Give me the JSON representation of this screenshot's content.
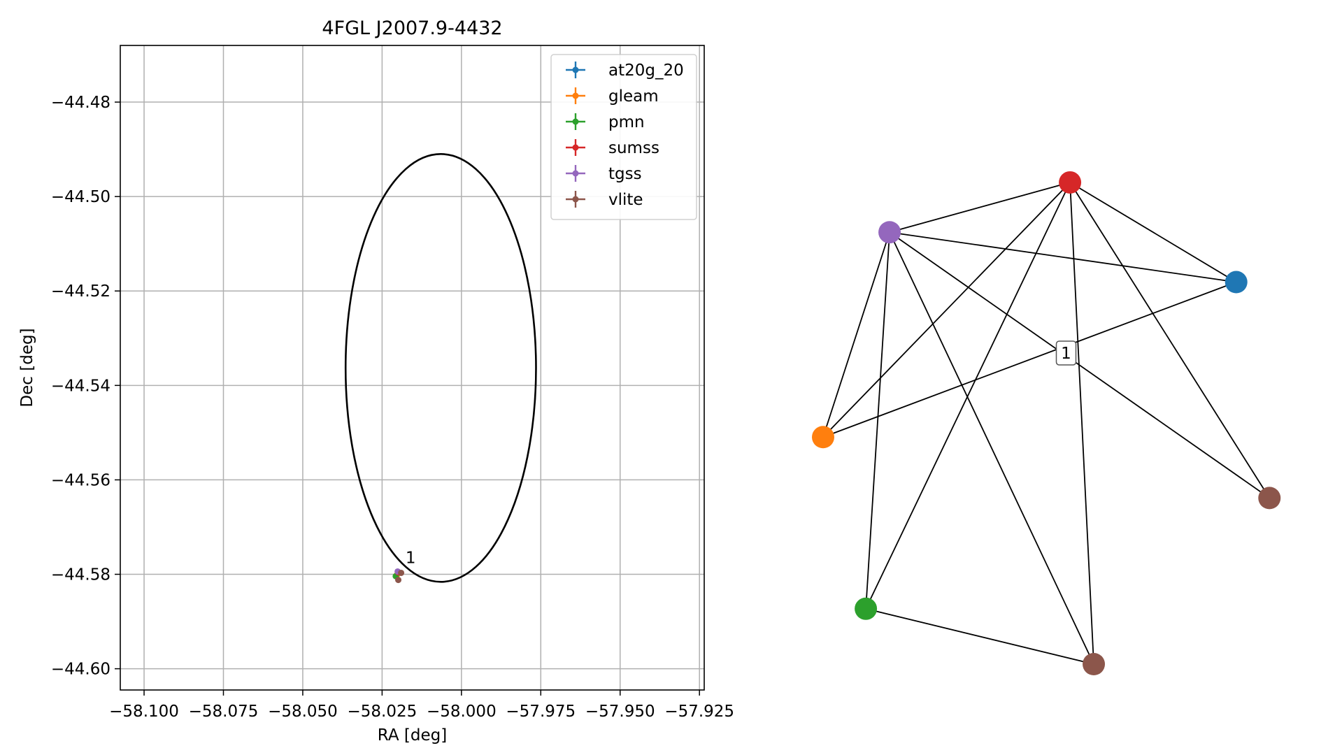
{
  "chart_data": [
    {
      "type": "scatter",
      "title": "4FGL J2007.9-4432",
      "xlabel": "RA [deg]",
      "ylabel": "Dec [deg]",
      "xlim": [
        -58.1075,
        -57.9235
      ],
      "ylim": [
        -44.6045,
        -44.468
      ],
      "grid": true,
      "legend_position": "top-right",
      "x_ticks": [
        -58.1,
        -58.075,
        -58.05,
        -58.025,
        -58.0,
        -57.975,
        -57.95,
        -57.925
      ],
      "x_tick_labels": [
        "−58.100",
        "−58.075",
        "−58.050",
        "−58.025",
        "−58.000",
        "−57.975",
        "−57.950",
        "−57.925"
      ],
      "y_ticks": [
        -44.48,
        -44.5,
        -44.52,
        -44.54,
        -44.56,
        -44.58,
        -44.6
      ],
      "y_tick_labels": [
        "−44.48",
        "−44.50",
        "−44.52",
        "−44.54",
        "−44.56",
        "−44.58",
        "−44.60"
      ],
      "ellipse": {
        "center": [
          -58.0065,
          -44.5363
        ],
        "semi_axis_ra": 0.03,
        "semi_axis_dec": 0.0453,
        "color": "#000000"
      },
      "series": [
        {
          "name": "at20g_20",
          "color": "#1f77b4",
          "points": [
            [
              -58.0197,
              -44.5797
            ]
          ]
        },
        {
          "name": "gleam",
          "color": "#ff7f0e",
          "points": [
            [
              -58.0203,
              -44.5801
            ]
          ]
        },
        {
          "name": "pmn",
          "color": "#2ca02c",
          "points": [
            [
              -58.0207,
              -44.5804
            ]
          ]
        },
        {
          "name": "sumss",
          "color": "#d62728",
          "points": [
            [
              -58.0199,
              -44.5796
            ]
          ]
        },
        {
          "name": "tgss",
          "color": "#9467bd",
          "points": [
            [
              -58.0201,
              -44.5794
            ]
          ]
        },
        {
          "name": "vlite",
          "color": "#8c564b",
          "points": [
            [
              -58.019,
              -44.5797
            ],
            [
              -58.0199,
              -44.5812
            ]
          ]
        }
      ],
      "annotations": [
        {
          "text": "1",
          "x": -58.0185,
          "y": -44.5785
        }
      ]
    },
    {
      "type": "network",
      "label": "1",
      "nodes": [
        {
          "id": "sumss",
          "color": "#d62728",
          "pos": [
            0.52,
            0.87
          ]
        },
        {
          "id": "tgss",
          "color": "#9467bd",
          "pos": [
            0.14,
            0.78
          ]
        },
        {
          "id": "at20g_20",
          "color": "#1f77b4",
          "pos": [
            0.87,
            0.69
          ]
        },
        {
          "id": "gleam",
          "color": "#ff7f0e",
          "pos": [
            0.0,
            0.41
          ]
        },
        {
          "id": "vlite_a",
          "color": "#8c564b",
          "pos": [
            0.94,
            0.3
          ]
        },
        {
          "id": "pmn",
          "color": "#2ca02c",
          "pos": [
            0.09,
            0.1
          ]
        },
        {
          "id": "vlite_b",
          "color": "#8c564b",
          "pos": [
            0.57,
            0.0
          ]
        }
      ],
      "edges": [
        [
          "tgss",
          "sumss"
        ],
        [
          "tgss",
          "at20g_20"
        ],
        [
          "tgss",
          "gleam"
        ],
        [
          "tgss",
          "pmn"
        ],
        [
          "tgss",
          "vlite_a"
        ],
        [
          "tgss",
          "vlite_b"
        ],
        [
          "sumss",
          "at20g_20"
        ],
        [
          "sumss",
          "gleam"
        ],
        [
          "sumss",
          "pmn"
        ],
        [
          "sumss",
          "vlite_b"
        ],
        [
          "sumss",
          "vlite_a"
        ],
        [
          "gleam",
          "at20g_20"
        ],
        [
          "pmn",
          "vlite_b"
        ]
      ]
    }
  ]
}
